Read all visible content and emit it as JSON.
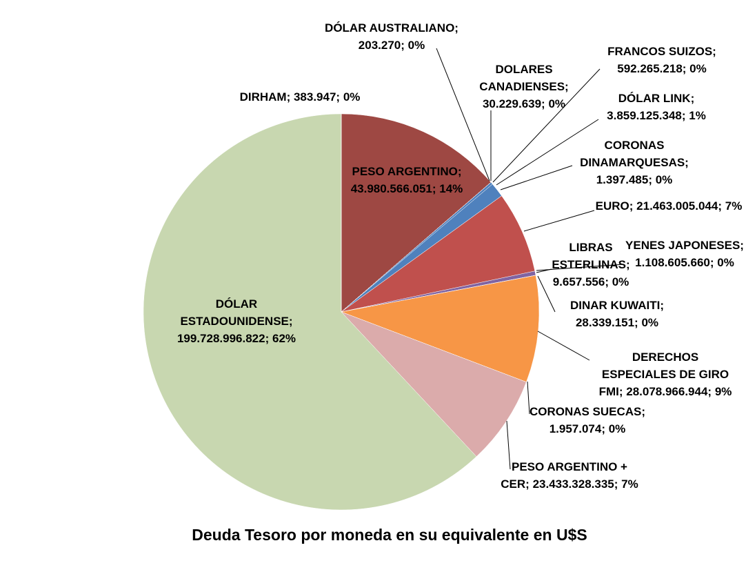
{
  "chart_data": {
    "type": "pie",
    "title": "Deuda Tesoro por moneda en su equivalente en U$S",
    "categories": [
      "PESO ARGENTINO;",
      "DÓLAR AUSTRALIANO;",
      "DOLARES CANADIENSES;",
      "FRANCOS SUIZOS;",
      "DÓLAR LINK;",
      "CORONAS DINAMARQUESAS;",
      "EURO;",
      "YENES JAPONESES;",
      "LIBRAS ESTERLINAS;",
      "DINAR KUWAITI;",
      "DERECHOS ESPECIALES DE GIRO FMI;",
      "CORONAS SUECAS;",
      "PESO ARGENTINO + CER;",
      "DÓLAR ESTADOUNIDENSE;",
      "DIRHAM;"
    ],
    "values": [
      43980566051,
      203270,
      30229639,
      592265218,
      3859125348,
      1397485,
      21463005044,
      1108605660,
      9657556,
      28339151,
      28078966944,
      1957074,
      23433328335,
      199728996822,
      383947
    ],
    "value_labels": [
      "43.980.566.051;",
      "203.270;",
      "30.229.639;",
      "592.265.218;",
      "3.859.125.348;",
      "1.397.485;",
      "21.463.005.044;",
      "1.108.605.660;",
      "9.657.556;",
      "28.339.151;",
      "28.078.966.944;",
      "1.957.074;",
      "23.433.328.335;",
      "199.728.996.822;",
      "383.947;"
    ],
    "percent_labels": [
      "14%",
      "0%",
      "0%",
      "0%",
      "1%",
      "0%",
      "7%",
      "0%",
      "0%",
      "0%",
      "9%",
      "0%",
      "7%",
      "62%",
      "0%"
    ],
    "colors": [
      "#9e4843",
      "#4bacc6",
      "#7f7f7f",
      "#4f81bd",
      "#4f81bd",
      "#9bbb59",
      "#c0504d",
      "#8064a2",
      "#4bacc6",
      "#8064a2",
      "#f79646",
      "#2c4d75",
      "#dbabab",
      "#c8d7b0",
      "#772c2a"
    ]
  }
}
